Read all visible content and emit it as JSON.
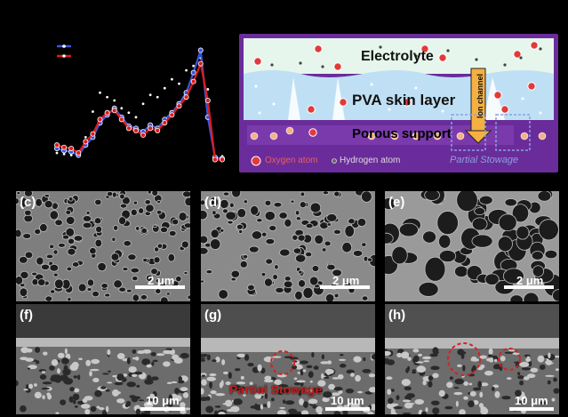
{
  "colors": {
    "series_blue": "#3a57d8",
    "series_red": "#e01a1a",
    "series_dots": "#ffffff",
    "frame_purple": "#6a2c9a",
    "electrolyte_bg": "#e6f6ec",
    "pva_layer": "#bfe0f4",
    "support_band": "#6a2c9a",
    "channel_arrow": "#f4b042",
    "oxygen_atom": "#e23a3a",
    "hydrogen_atom": "#444444"
  },
  "chart_data": {
    "type": "line",
    "x": [
      1,
      2,
      3,
      4,
      5,
      6,
      7,
      8,
      9,
      10,
      11,
      12,
      13,
      14,
      15,
      16,
      17,
      18,
      19,
      20,
      21,
      22,
      23,
      24
    ],
    "series": [
      {
        "values": [
          0.12,
          0.1,
          0.09,
          0.06,
          0.15,
          0.22,
          0.35,
          0.42,
          0.48,
          0.4,
          0.32,
          0.3,
          0.27,
          0.33,
          0.3,
          0.38,
          0.44,
          0.52,
          0.62,
          0.8,
          1.0,
          0.4,
          0.04,
          0.03
        ]
      },
      {
        "values": [
          0.15,
          0.13,
          0.12,
          0.08,
          0.18,
          0.25,
          0.38,
          0.44,
          0.46,
          0.38,
          0.3,
          0.28,
          0.24,
          0.3,
          0.28,
          0.35,
          0.42,
          0.5,
          0.58,
          0.72,
          0.88,
          0.55,
          0.02,
          0.02
        ]
      }
    ],
    "scatter_dots": {
      "x": [
        1,
        2,
        3,
        4,
        5,
        6,
        7,
        8,
        9,
        10,
        11,
        12,
        13,
        14,
        15,
        16,
        17,
        18,
        19,
        20,
        21,
        22,
        23,
        24
      ],
      "y": [
        0.08,
        0.07,
        0.06,
        0.05,
        0.22,
        0.45,
        0.62,
        0.58,
        0.55,
        0.48,
        0.44,
        0.4,
        0.52,
        0.6,
        0.58,
        0.66,
        0.74,
        0.7,
        0.82,
        0.86,
        0.93,
        0.65,
        0.05,
        0.05
      ]
    },
    "ylim": [
      0,
      1.1
    ]
  },
  "schematic": {
    "electrolyte_label": "Electrolyte",
    "pva_label": "PVA skin layer",
    "porous_label": "Porous support",
    "channel_label": "Ion channel",
    "legend_oxygen": "Oxygen atom",
    "legend_hydrogen": "Hydrogen atom",
    "legend_partial": "Partial Stowage"
  },
  "panels": {
    "c": {
      "label": "(c)",
      "scale": "2 μm"
    },
    "d": {
      "label": "(d)",
      "scale": "2 μm"
    },
    "e": {
      "label": "(e)",
      "scale": "2 μm"
    },
    "f": {
      "label": "(f)",
      "scale": "10 μm"
    },
    "g": {
      "label": "(g)",
      "scale": "10 μm",
      "annotation": "Partial Stowage"
    },
    "h": {
      "label": "(h)",
      "scale": "10 μm"
    }
  }
}
